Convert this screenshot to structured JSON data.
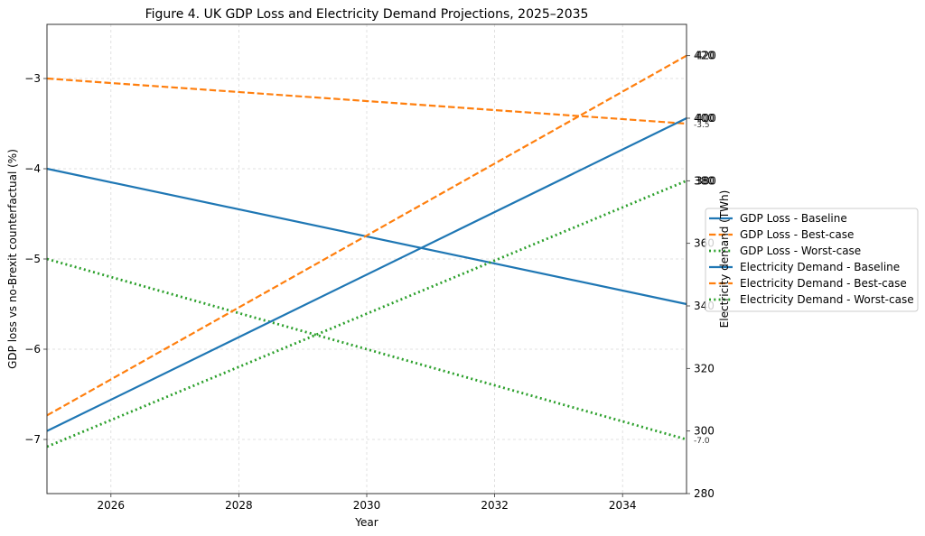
{
  "chart_data": {
    "type": "line",
    "title": "Figure 4. UK GDP Loss and Electricity Demand Projections, 2025–2035",
    "xlabel": "Year",
    "ylabel_left": "GDP loss vs no-Brexit counterfactual (%)",
    "ylabel_right": "Electricity demand (TWh)",
    "xlim": [
      2025,
      2035
    ],
    "ylim_left": [
      -7.6,
      -2.4
    ],
    "ylim_right": [
      280,
      430
    ],
    "x_ticks": [
      2026,
      2028,
      2030,
      2032,
      2034
    ],
    "y_ticks_left": [
      -7,
      -6,
      -5,
      -4,
      -3
    ],
    "y_ticks_left_labels": [
      "−7",
      "−6",
      "−5",
      "−4",
      "−3"
    ],
    "y_ticks_right": [
      280,
      300,
      320,
      340,
      360,
      380,
      400,
      420
    ],
    "grid": true,
    "legend_position": "center-right-outside",
    "x": [
      2025,
      2035
    ],
    "series": [
      {
        "name": "GDP Loss - Baseline",
        "axis": "left",
        "color": "#1f77b4",
        "style": "solid",
        "values": [
          -4.0,
          -5.5
        ]
      },
      {
        "name": "GDP Loss - Best-case",
        "axis": "left",
        "color": "#ff7f0e",
        "style": "dashed",
        "values": [
          -3.0,
          -3.5
        ]
      },
      {
        "name": "GDP Loss - Worst-case",
        "axis": "left",
        "color": "#2ca02c",
        "style": "dotted",
        "values": [
          -5.0,
          -7.0
        ]
      },
      {
        "name": "Electricity Demand - Baseline",
        "axis": "right",
        "color": "#1f77b4",
        "style": "solid",
        "values": [
          300,
          400
        ]
      },
      {
        "name": "Electricity Demand - Best-case",
        "axis": "right",
        "color": "#ff7f0e",
        "style": "dashed",
        "values": [
          305,
          420
        ]
      },
      {
        "name": "Electricity Demand - Worst-case",
        "axis": "right",
        "color": "#2ca02c",
        "style": "dotted",
        "values": [
          295,
          380
        ]
      }
    ],
    "annotations": [
      {
        "text": "-3.5",
        "x": 2035,
        "y": -3.5,
        "axis": "left"
      },
      {
        "text": "-7.0",
        "x": 2035,
        "y": -7.0,
        "axis": "left"
      }
    ]
  }
}
